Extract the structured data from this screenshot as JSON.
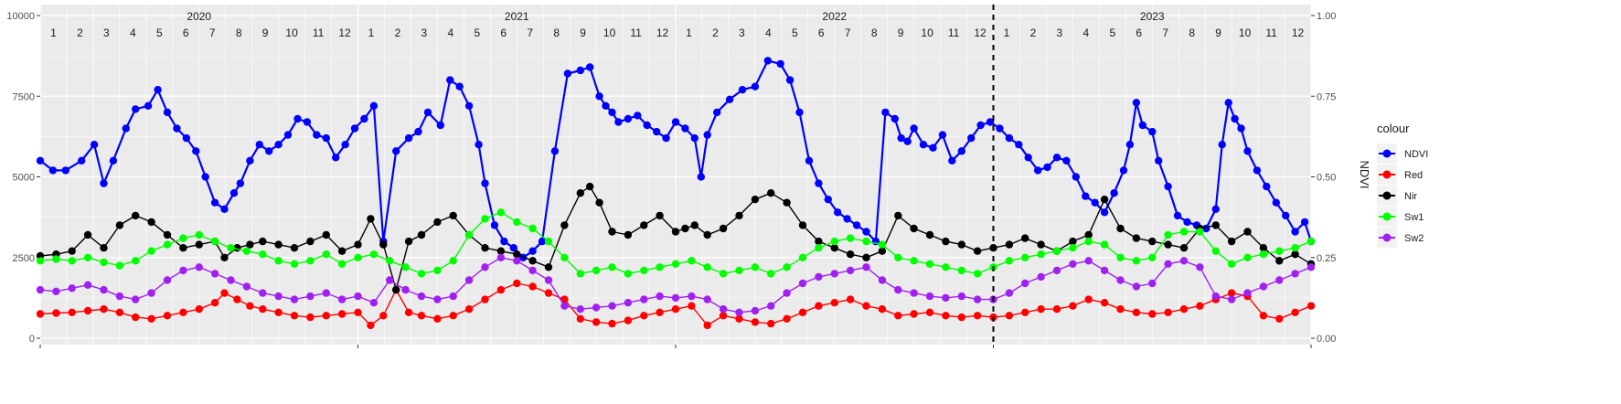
{
  "chart_data": {
    "type": "line",
    "title": "",
    "ylabel": "",
    "y2label": "NDVI",
    "ylim": [
      0,
      10000
    ],
    "y2lim": [
      0,
      1
    ],
    "yticks": [
      "0",
      "2500",
      "5000",
      "7500",
      "10000"
    ],
    "y2ticks": [
      "0.00",
      "0.25",
      "0.50",
      "0.75",
      "1.00"
    ],
    "xlim": [
      2020.0,
      2024.0
    ],
    "years": [
      "2020",
      "2021",
      "2022",
      "2023"
    ],
    "month_labels": [
      "1",
      "2",
      "3",
      "4",
      "5",
      "6",
      "7",
      "8",
      "9",
      "10",
      "11",
      "12"
    ],
    "dashed_line_x": 2023.0,
    "legend": {
      "title": "colour",
      "position": "right"
    },
    "grid": true,
    "series": [
      {
        "name": "NDVI",
        "color": "#0000FF",
        "axis": "right",
        "x": [
          2020.0,
          2020.04,
          2020.08,
          2020.13,
          2020.17,
          2020.2,
          2020.23,
          2020.27,
          2020.3,
          2020.34,
          2020.37,
          2020.4,
          2020.43,
          2020.46,
          2020.49,
          2020.52,
          2020.55,
          2020.58,
          2020.61,
          2020.63,
          2020.66,
          2020.69,
          2020.72,
          2020.75,
          2020.78,
          2020.81,
          2020.84,
          2020.87,
          2020.9,
          2020.93,
          2020.96,
          2020.99,
          2021.02,
          2021.05,
          2021.08,
          2021.12,
          2021.16,
          2021.19,
          2021.22,
          2021.26,
          2021.29,
          2021.32,
          2021.35,
          2021.38,
          2021.4,
          2021.43,
          2021.46,
          2021.49,
          2021.52,
          2021.55,
          2021.58,
          2021.62,
          2021.66,
          2021.7,
          2021.73,
          2021.76,
          2021.78,
          2021.8,
          2021.82,
          2021.85,
          2021.88,
          2021.91,
          2021.94,
          2021.97,
          2022.0,
          2022.03,
          2022.06,
          2022.08,
          2022.1,
          2022.13,
          2022.17,
          2022.21,
          2022.25,
          2022.29,
          2022.33,
          2022.36,
          2022.39,
          2022.42,
          2022.45,
          2022.48,
          2022.51,
          2022.54,
          2022.57,
          2022.6,
          2022.63,
          2022.66,
          2022.69,
          2022.71,
          2022.73,
          2022.75,
          2022.78,
          2022.81,
          2022.84,
          2022.87,
          2022.9,
          2022.93,
          2022.96,
          2022.99,
          2023.02,
          2023.05,
          2023.08,
          2023.11,
          2023.14,
          2023.17,
          2023.2,
          2023.23,
          2023.26,
          2023.29,
          2023.32,
          2023.35,
          2023.38,
          2023.41,
          2023.43,
          2023.45,
          2023.47,
          2023.5,
          2023.52,
          2023.55,
          2023.58,
          2023.61,
          2023.64,
          2023.67,
          2023.7,
          2023.72,
          2023.74,
          2023.76,
          2023.78,
          2023.8,
          2023.83,
          2023.86,
          2023.89,
          2023.92,
          2023.95,
          2023.98,
          2024.0
        ],
        "values": [
          0.55,
          0.52,
          0.52,
          0.55,
          0.6,
          0.48,
          0.55,
          0.65,
          0.71,
          0.72,
          0.77,
          0.7,
          0.65,
          0.62,
          0.58,
          0.5,
          0.42,
          0.4,
          0.45,
          0.48,
          0.55,
          0.6,
          0.58,
          0.6,
          0.63,
          0.68,
          0.67,
          0.63,
          0.62,
          0.56,
          0.6,
          0.65,
          0.68,
          0.72,
          0.3,
          0.58,
          0.62,
          0.64,
          0.7,
          0.66,
          0.8,
          0.78,
          0.72,
          0.6,
          0.48,
          0.35,
          0.3,
          0.28,
          0.25,
          0.27,
          0.3,
          0.58,
          0.82,
          0.83,
          0.84,
          0.75,
          0.72,
          0.7,
          0.67,
          0.68,
          0.69,
          0.66,
          0.64,
          0.62,
          0.67,
          0.65,
          0.62,
          0.5,
          0.63,
          0.7,
          0.74,
          0.77,
          0.78,
          0.86,
          0.85,
          0.8,
          0.7,
          0.55,
          0.48,
          0.43,
          0.39,
          0.37,
          0.35,
          0.33,
          0.3,
          0.7,
          0.68,
          0.62,
          0.61,
          0.65,
          0.6,
          0.59,
          0.63,
          0.55,
          0.58,
          0.62,
          0.66,
          0.67,
          0.65,
          0.62,
          0.6,
          0.56,
          0.52,
          0.53,
          0.56,
          0.55,
          0.5,
          0.44,
          0.42,
          0.39,
          0.45,
          0.52,
          0.6,
          0.73,
          0.66,
          0.64,
          0.55,
          0.47,
          0.38,
          0.36,
          0.35,
          0.34,
          0.4,
          0.6,
          0.73,
          0.68,
          0.65,
          0.58,
          0.52,
          0.47,
          0.42,
          0.38,
          0.33,
          0.36,
          0.3
        ]
      },
      {
        "name": "Red",
        "color": "#FF0000",
        "axis": "left",
        "x": [
          2020.0,
          2020.05,
          2020.1,
          2020.15,
          2020.2,
          2020.25,
          2020.3,
          2020.35,
          2020.4,
          2020.45,
          2020.5,
          2020.55,
          2020.58,
          2020.62,
          2020.66,
          2020.7,
          2020.75,
          2020.8,
          2020.85,
          2020.9,
          2020.95,
          2021.0,
          2021.04,
          2021.08,
          2021.12,
          2021.16,
          2021.2,
          2021.25,
          2021.3,
          2021.35,
          2021.4,
          2021.45,
          2021.5,
          2021.55,
          2021.6,
          2021.65,
          2021.7,
          2021.75,
          2021.8,
          2021.85,
          2021.9,
          2021.95,
          2022.0,
          2022.05,
          2022.1,
          2022.15,
          2022.2,
          2022.25,
          2022.3,
          2022.35,
          2022.4,
          2022.45,
          2022.5,
          2022.55,
          2022.6,
          2022.65,
          2022.7,
          2022.75,
          2022.8,
          2022.85,
          2022.9,
          2022.95,
          2023.0,
          2023.05,
          2023.1,
          2023.15,
          2023.2,
          2023.25,
          2023.3,
          2023.35,
          2023.4,
          2023.45,
          2023.5,
          2023.55,
          2023.6,
          2023.65,
          2023.7,
          2023.75,
          2023.8,
          2023.85,
          2023.9,
          2023.95,
          2024.0
        ],
        "values": [
          750,
          780,
          800,
          850,
          900,
          800,
          650,
          600,
          700,
          800,
          900,
          1100,
          1400,
          1200,
          1000,
          900,
          800,
          700,
          650,
          700,
          750,
          800,
          400,
          700,
          1500,
          800,
          700,
          600,
          700,
          900,
          1200,
          1500,
          1700,
          1600,
          1400,
          1200,
          600,
          500,
          450,
          550,
          700,
          800,
          900,
          1000,
          400,
          700,
          600,
          500,
          450,
          600,
          800,
          1000,
          1100,
          1200,
          1000,
          900,
          700,
          750,
          800,
          700,
          650,
          700,
          650,
          700,
          800,
          900,
          900,
          1000,
          1200,
          1100,
          900,
          800,
          750,
          800,
          900,
          1000,
          1200,
          1400,
          1300,
          700,
          600,
          800,
          1000
        ]
      },
      {
        "name": "Nir",
        "color": "#000000",
        "axis": "left",
        "x": [
          2020.0,
          2020.05,
          2020.1,
          2020.15,
          2020.2,
          2020.25,
          2020.3,
          2020.35,
          2020.4,
          2020.45,
          2020.5,
          2020.55,
          2020.58,
          2020.62,
          2020.66,
          2020.7,
          2020.75,
          2020.8,
          2020.85,
          2020.9,
          2020.95,
          2021.0,
          2021.04,
          2021.08,
          2021.12,
          2021.16,
          2021.2,
          2021.25,
          2021.3,
          2021.35,
          2021.4,
          2021.45,
          2021.5,
          2021.55,
          2021.6,
          2021.65,
          2021.7,
          2021.73,
          2021.76,
          2021.8,
          2021.85,
          2021.9,
          2021.95,
          2022.0,
          2022.03,
          2022.06,
          2022.1,
          2022.15,
          2022.2,
          2022.25,
          2022.3,
          2022.35,
          2022.4,
          2022.45,
          2022.5,
          2022.55,
          2022.6,
          2022.65,
          2022.7,
          2022.75,
          2022.8,
          2022.85,
          2022.9,
          2022.95,
          2023.0,
          2023.05,
          2023.1,
          2023.15,
          2023.2,
          2023.25,
          2023.3,
          2023.35,
          2023.4,
          2023.45,
          2023.5,
          2023.55,
          2023.6,
          2023.65,
          2023.7,
          2023.75,
          2023.8,
          2023.85,
          2023.9,
          2023.95,
          2024.0
        ],
        "values": [
          2550,
          2600,
          2700,
          3200,
          2800,
          3500,
          3800,
          3600,
          3200,
          2800,
          2900,
          3000,
          2500,
          2800,
          2900,
          3000,
          2900,
          2800,
          3000,
          3200,
          2700,
          2900,
          3700,
          2900,
          1500,
          3000,
          3200,
          3600,
          3800,
          3200,
          2800,
          2700,
          2600,
          2400,
          2200,
          3500,
          4500,
          4700,
          4200,
          3300,
          3200,
          3500,
          3800,
          3300,
          3400,
          3500,
          3200,
          3400,
          3800,
          4300,
          4500,
          4200,
          3500,
          3000,
          2800,
          2600,
          2500,
          2700,
          3800,
          3400,
          3200,
          3000,
          2900,
          2700,
          2800,
          2900,
          3100,
          2900,
          2700,
          3000,
          3200,
          4300,
          3400,
          3100,
          3000,
          2900,
          2800,
          3400,
          3500,
          3000,
          3300,
          2800,
          2400,
          2600,
          2300
        ]
      },
      {
        "name": "Sw1",
        "color": "#00FF00",
        "axis": "left",
        "x": [
          2020.0,
          2020.05,
          2020.1,
          2020.15,
          2020.2,
          2020.25,
          2020.3,
          2020.35,
          2020.4,
          2020.45,
          2020.5,
          2020.55,
          2020.6,
          2020.65,
          2020.7,
          2020.75,
          2020.8,
          2020.85,
          2020.9,
          2020.95,
          2021.0,
          2021.05,
          2021.1,
          2021.15,
          2021.2,
          2021.25,
          2021.3,
          2021.35,
          2021.4,
          2021.45,
          2021.5,
          2021.55,
          2021.6,
          2021.65,
          2021.7,
          2021.75,
          2021.8,
          2021.85,
          2021.9,
          2021.95,
          2022.0,
          2022.05,
          2022.1,
          2022.15,
          2022.2,
          2022.25,
          2022.3,
          2022.35,
          2022.4,
          2022.45,
          2022.5,
          2022.55,
          2022.6,
          2022.65,
          2022.7,
          2022.75,
          2022.8,
          2022.85,
          2022.9,
          2022.95,
          2023.0,
          2023.05,
          2023.1,
          2023.15,
          2023.2,
          2023.25,
          2023.3,
          2023.35,
          2023.4,
          2023.45,
          2023.5,
          2023.55,
          2023.6,
          2023.65,
          2023.7,
          2023.75,
          2023.8,
          2023.85,
          2023.9,
          2023.95,
          2024.0
        ],
        "values": [
          2400,
          2450,
          2400,
          2500,
          2350,
          2250,
          2400,
          2700,
          2900,
          3100,
          3200,
          3000,
          2800,
          2700,
          2600,
          2400,
          2300,
          2400,
          2600,
          2300,
          2500,
          2600,
          2400,
          2200,
          2000,
          2100,
          2400,
          3200,
          3700,
          3900,
          3600,
          3400,
          3000,
          2500,
          2000,
          2100,
          2200,
          2000,
          2100,
          2200,
          2300,
          2400,
          2200,
          2000,
          2100,
          2200,
          2000,
          2200,
          2500,
          2800,
          3000,
          3100,
          3000,
          2900,
          2500,
          2400,
          2300,
          2200,
          2100,
          2000,
          2200,
          2400,
          2500,
          2600,
          2700,
          2800,
          3000,
          2900,
          2500,
          2400,
          2500,
          3200,
          3300,
          3300,
          2700,
          2300,
          2500,
          2600,
          2700,
          2800,
          3000
        ]
      },
      {
        "name": "Sw2",
        "color": "#A020F0",
        "axis": "left",
        "x": [
          2020.0,
          2020.05,
          2020.1,
          2020.15,
          2020.2,
          2020.25,
          2020.3,
          2020.35,
          2020.4,
          2020.45,
          2020.5,
          2020.55,
          2020.6,
          2020.65,
          2020.7,
          2020.75,
          2020.8,
          2020.85,
          2020.9,
          2020.95,
          2021.0,
          2021.05,
          2021.1,
          2021.15,
          2021.2,
          2021.25,
          2021.3,
          2021.35,
          2021.4,
          2021.45,
          2021.5,
          2021.55,
          2021.6,
          2021.65,
          2021.7,
          2021.75,
          2021.8,
          2021.85,
          2021.9,
          2021.95,
          2022.0,
          2022.05,
          2022.1,
          2022.15,
          2022.2,
          2022.25,
          2022.3,
          2022.35,
          2022.4,
          2022.45,
          2022.5,
          2022.55,
          2022.6,
          2022.65,
          2022.7,
          2022.75,
          2022.8,
          2022.85,
          2022.9,
          2022.95,
          2023.0,
          2023.05,
          2023.1,
          2023.15,
          2023.2,
          2023.25,
          2023.3,
          2023.35,
          2023.4,
          2023.45,
          2023.5,
          2023.55,
          2023.6,
          2023.65,
          2023.7,
          2023.75,
          2023.8,
          2023.85,
          2023.9,
          2023.95,
          2024.0
        ],
        "values": [
          1500,
          1450,
          1550,
          1650,
          1500,
          1300,
          1200,
          1400,
          1800,
          2100,
          2200,
          2000,
          1800,
          1600,
          1400,
          1300,
          1200,
          1300,
          1400,
          1200,
          1300,
          1100,
          1800,
          1500,
          1300,
          1200,
          1300,
          1800,
          2200,
          2500,
          2400,
          2100,
          1800,
          1000,
          900,
          950,
          1000,
          1100,
          1200,
          1300,
          1250,
          1300,
          1200,
          900,
          800,
          850,
          1000,
          1400,
          1700,
          1900,
          2000,
          2100,
          2200,
          1800,
          1500,
          1400,
          1300,
          1250,
          1300,
          1200,
          1200,
          1400,
          1700,
          1900,
          2100,
          2300,
          2400,
          2100,
          1800,
          1600,
          1700,
          2300,
          2400,
          2200,
          1300,
          1200,
          1400,
          1600,
          1800,
          2000,
          2200
        ]
      }
    ]
  }
}
